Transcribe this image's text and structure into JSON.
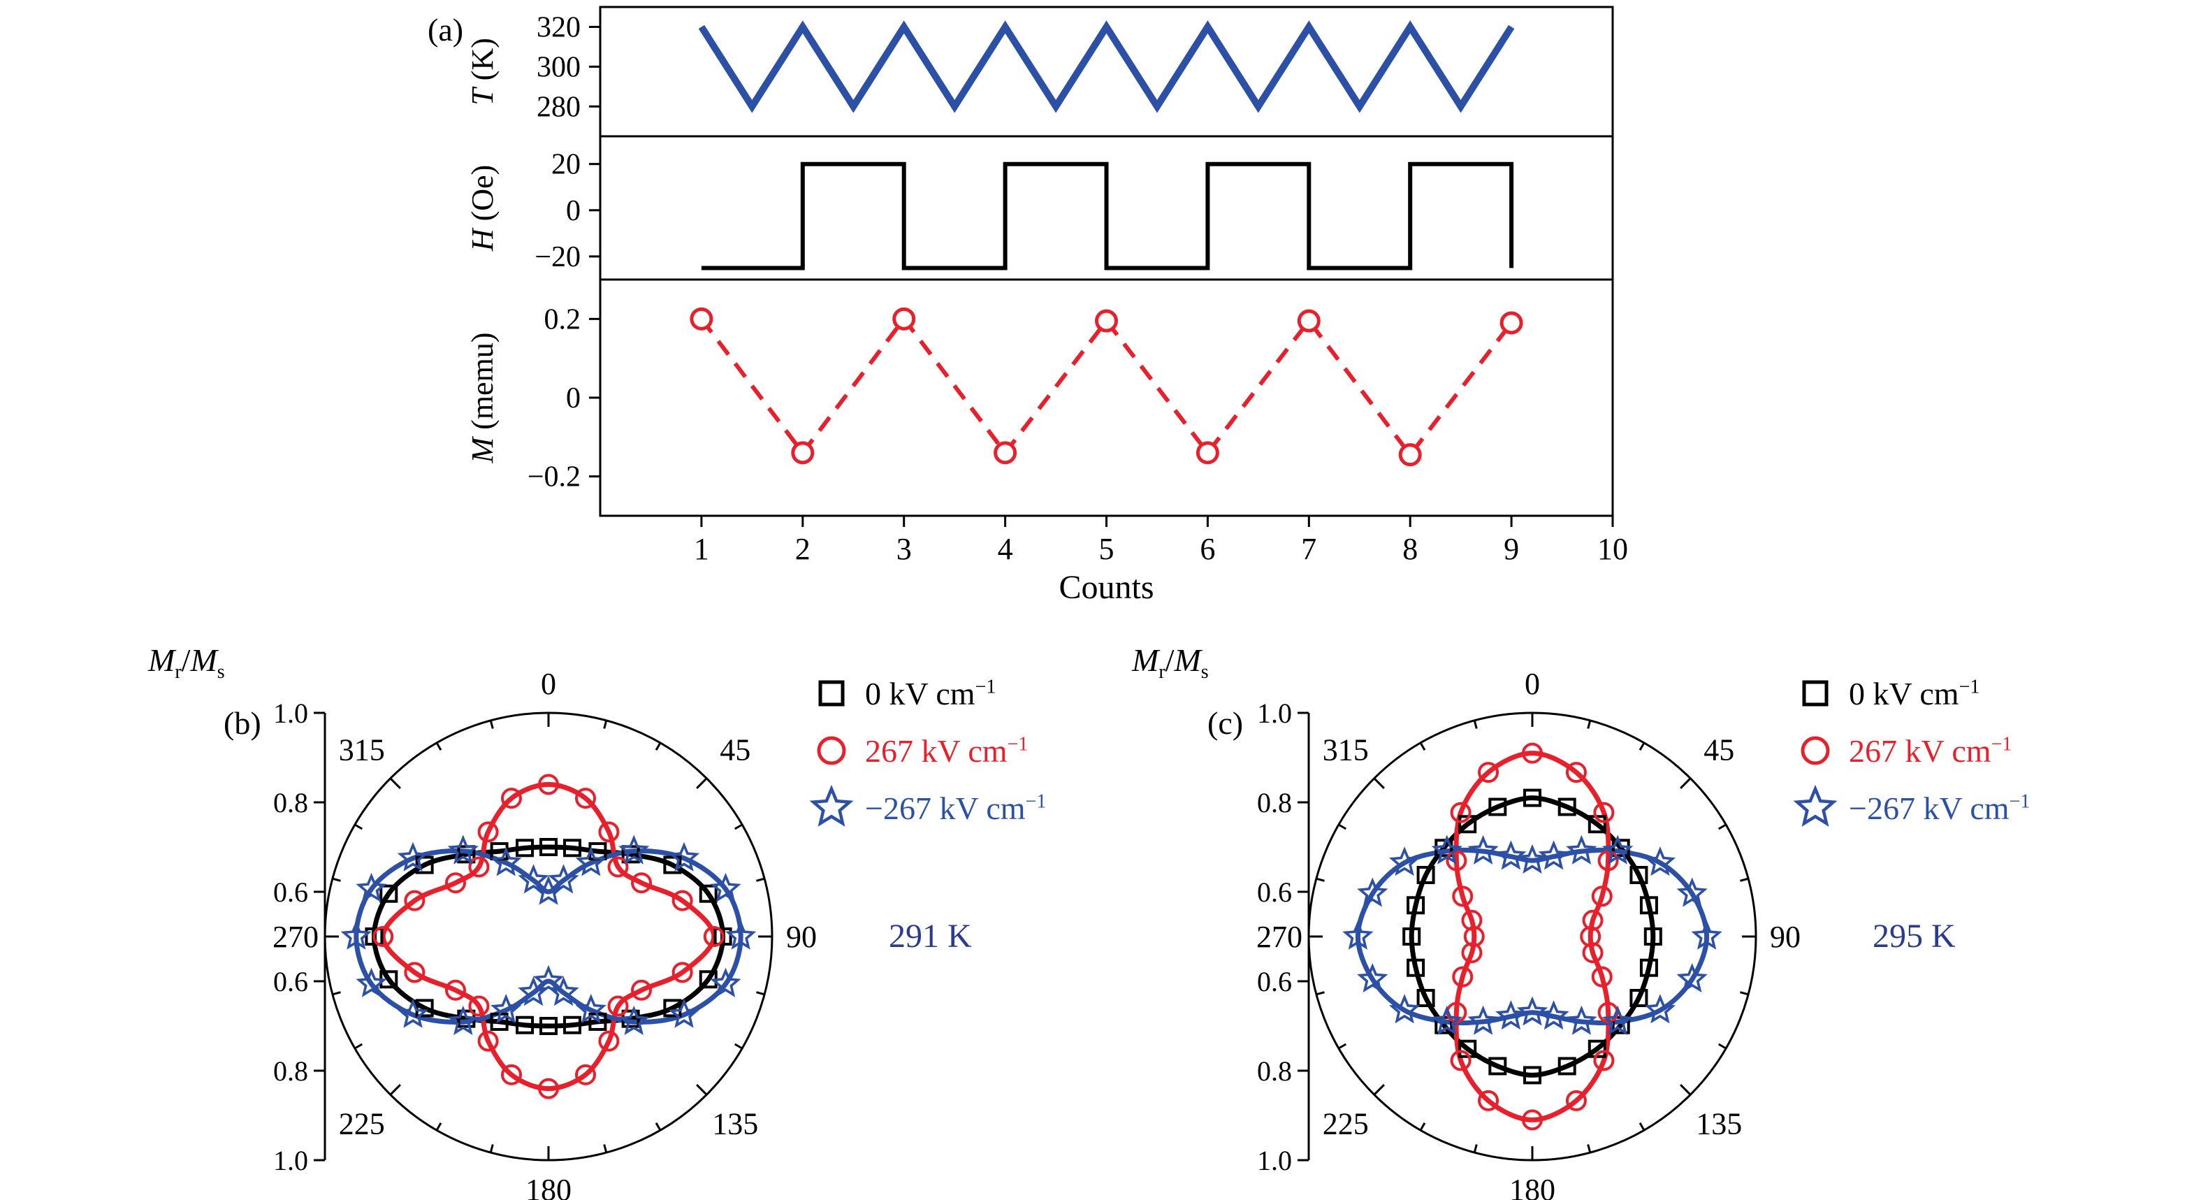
{
  "colors": {
    "blue": "#2b50a5",
    "red": "#e8202c",
    "black": "#000000",
    "navy": "#2a3b8f"
  },
  "panels": {
    "a_label": "(a)",
    "b_label": "(b)",
    "c_label": "(c)"
  },
  "panel_a": {
    "xlabel": "Counts",
    "xlim": [
      0,
      10
    ],
    "xticks": [
      {
        "v": 1,
        "label": "1"
      },
      {
        "v": 2,
        "label": "2"
      },
      {
        "v": 3,
        "label": "3"
      },
      {
        "v": 4,
        "label": "4"
      },
      {
        "v": 5,
        "label": "5"
      },
      {
        "v": 6,
        "label": "6"
      },
      {
        "v": 7,
        "label": "7"
      },
      {
        "v": 8,
        "label": "8"
      },
      {
        "v": 9,
        "label": "9"
      },
      {
        "v": 10,
        "label": "10"
      }
    ],
    "subplots": [
      {
        "id": "temperature",
        "var": "T",
        "unit": "(K)",
        "color": "blue",
        "ylim": [
          265,
          330
        ],
        "yticks": [
          {
            "v": 320,
            "label": "320"
          },
          {
            "v": 300,
            "label": "300"
          },
          {
            "v": 280,
            "label": "280"
          }
        ]
      },
      {
        "id": "field",
        "var": "H",
        "unit": "(Oe)",
        "color": "black",
        "ylim": [
          -30,
          32
        ],
        "yticks": [
          {
            "v": 20,
            "label": "20"
          },
          {
            "v": 0,
            "label": "0"
          },
          {
            "v": -20,
            "label": "−20"
          }
        ]
      },
      {
        "id": "moment",
        "var": "M",
        "unit": "(memu)",
        "color": "red",
        "ylim": [
          -0.3,
          0.3
        ],
        "yticks": [
          {
            "v": 0.2,
            "label": "0.2"
          },
          {
            "v": 0,
            "label": "0"
          },
          {
            "v": -0.2,
            "label": "−0.2"
          }
        ]
      }
    ]
  },
  "polar": {
    "raxis": {
      "m1": "M",
      "s1": "r",
      "sep": "/",
      "m2": "M",
      "s2": "s"
    },
    "rmin": 0.5,
    "rmax": 1.0,
    "radial_ticks": [
      {
        "v": 1.0,
        "label": "1.0"
      },
      {
        "v": 0.8,
        "label": "0.8"
      },
      {
        "v": 0.6,
        "label": "0.6"
      }
    ],
    "angle_labels": [
      {
        "deg": 0,
        "label": "0"
      },
      {
        "deg": 45,
        "label": "45"
      },
      {
        "deg": 90,
        "label": "90"
      },
      {
        "deg": 135,
        "label": "135"
      },
      {
        "deg": 180,
        "label": "180"
      },
      {
        "deg": 225,
        "label": "225"
      },
      {
        "deg": 270,
        "label": "270"
      },
      {
        "deg": 315,
        "label": "315"
      }
    ]
  },
  "legend": {
    "items": [
      {
        "marker": "square",
        "color": "black",
        "value": "0 kV cm",
        "sup": "−1"
      },
      {
        "marker": "circle",
        "color": "red",
        "value": "267 kV cm",
        "sup": "−1"
      },
      {
        "marker": "star",
        "color": "blue",
        "value": "−267 kV cm",
        "sup": "−1"
      }
    ]
  },
  "polar_b": {
    "temperature": "291 K"
  },
  "polar_c": {
    "temperature": "295 K"
  },
  "chart_data": [
    {
      "id": "temperature",
      "panel": "a",
      "type": "line",
      "ylabel": "T (K)",
      "xlabel": "Counts",
      "ylim": [
        265,
        330
      ],
      "x": [
        1,
        1.5,
        2,
        2.5,
        3,
        3.5,
        4,
        4.5,
        5,
        5.5,
        6,
        6.5,
        7,
        7.5,
        8,
        8.5,
        9
      ],
      "y": [
        320,
        280,
        320,
        280,
        320,
        280,
        320,
        280,
        320,
        280,
        320,
        280,
        320,
        280,
        320,
        280,
        320
      ]
    },
    {
      "id": "field",
      "panel": "a",
      "type": "line",
      "ylabel": "H (Oe)",
      "xlabel": "Counts",
      "ylim": [
        -30,
        32
      ],
      "x": [
        1,
        2,
        2,
        3,
        3,
        4,
        4,
        5,
        5,
        6,
        6,
        7,
        7,
        8,
        8,
        9,
        9
      ],
      "y": [
        -25,
        -25,
        20,
        20,
        -25,
        -25,
        20,
        20,
        -25,
        -25,
        20,
        20,
        -25,
        -25,
        20,
        20,
        -25
      ]
    },
    {
      "id": "moment",
      "panel": "a",
      "type": "line+scatter",
      "style": "dashed",
      "ylabel": "M (memu)",
      "xlabel": "Counts",
      "ylim": [
        -0.3,
        0.3
      ],
      "x": [
        1,
        2,
        3,
        4,
        5,
        6,
        7,
        8,
        9
      ],
      "y": [
        0.2,
        -0.14,
        0.2,
        -0.14,
        0.195,
        -0.14,
        0.195,
        -0.145,
        0.19
      ]
    },
    {
      "id": "b",
      "panel": "b",
      "type": "polar",
      "title": "291 K",
      "rlim": [
        0.5,
        1.0
      ],
      "angles_deg": [
        0,
        15,
        30,
        45,
        60,
        75,
        90,
        105,
        120,
        135,
        150,
        165,
        180,
        195,
        210,
        225,
        240,
        255,
        270,
        285,
        300,
        315,
        330,
        345
      ],
      "series": [
        {
          "name": "0 kV cm−1",
          "marker": "square",
          "color": "black",
          "r": [
            0.7,
            0.705,
            0.72,
            0.76,
            0.82,
            0.87,
            0.89,
            0.87,
            0.82,
            0.76,
            0.72,
            0.705,
            0.7,
            0.705,
            0.72,
            0.76,
            0.82,
            0.87,
            0.89,
            0.87,
            0.82,
            0.76,
            0.72,
            0.705
          ]
        },
        {
          "name": "267 kV cm−1",
          "marker": "circle",
          "color": "red",
          "r": [
            0.84,
            0.82,
            0.77,
            0.72,
            0.74,
            0.81,
            0.87,
            0.81,
            0.74,
            0.72,
            0.77,
            0.82,
            0.84,
            0.82,
            0.77,
            0.72,
            0.74,
            0.81,
            0.87,
            0.81,
            0.74,
            0.72,
            0.77,
            0.82
          ]
        },
        {
          "name": "−267 kV cm−1",
          "marker": "star",
          "color": "blue",
          "r": [
            0.6,
            0.63,
            0.69,
            0.77,
            0.85,
            0.91,
            0.93,
            0.91,
            0.85,
            0.77,
            0.69,
            0.63,
            0.6,
            0.63,
            0.69,
            0.77,
            0.85,
            0.91,
            0.93,
            0.91,
            0.85,
            0.77,
            0.69,
            0.63
          ]
        }
      ]
    },
    {
      "id": "c",
      "panel": "c",
      "type": "polar",
      "title": "295 K",
      "rlim": [
        0.5,
        1.0
      ],
      "angles_deg": [
        0,
        15,
        30,
        45,
        60,
        75,
        90,
        105,
        120,
        135,
        150,
        165,
        180,
        195,
        210,
        225,
        240,
        255,
        270,
        285,
        300,
        315,
        330,
        345
      ],
      "series": [
        {
          "name": "0 kV cm−1",
          "marker": "square",
          "color": "black",
          "r": [
            0.81,
            0.8,
            0.79,
            0.78,
            0.775,
            0.77,
            0.77,
            0.77,
            0.775,
            0.78,
            0.79,
            0.8,
            0.81,
            0.8,
            0.79,
            0.78,
            0.775,
            0.77,
            0.77,
            0.77,
            0.775,
            0.78,
            0.79,
            0.8
          ]
        },
        {
          "name": "267 kV cm−1",
          "marker": "circle",
          "color": "red",
          "r": [
            0.91,
            0.88,
            0.82,
            0.74,
            0.68,
            0.64,
            0.63,
            0.64,
            0.68,
            0.74,
            0.82,
            0.88,
            0.91,
            0.88,
            0.82,
            0.74,
            0.68,
            0.64,
            0.63,
            0.64,
            0.68,
            0.74,
            0.82,
            0.88
          ]
        },
        {
          "name": "−267 kV cm−1",
          "marker": "star",
          "color": "blue",
          "r": [
            0.67,
            0.685,
            0.72,
            0.77,
            0.83,
            0.87,
            0.89,
            0.87,
            0.83,
            0.77,
            0.72,
            0.685,
            0.67,
            0.685,
            0.72,
            0.77,
            0.83,
            0.87,
            0.89,
            0.87,
            0.83,
            0.77,
            0.72,
            0.685
          ]
        }
      ]
    }
  ]
}
